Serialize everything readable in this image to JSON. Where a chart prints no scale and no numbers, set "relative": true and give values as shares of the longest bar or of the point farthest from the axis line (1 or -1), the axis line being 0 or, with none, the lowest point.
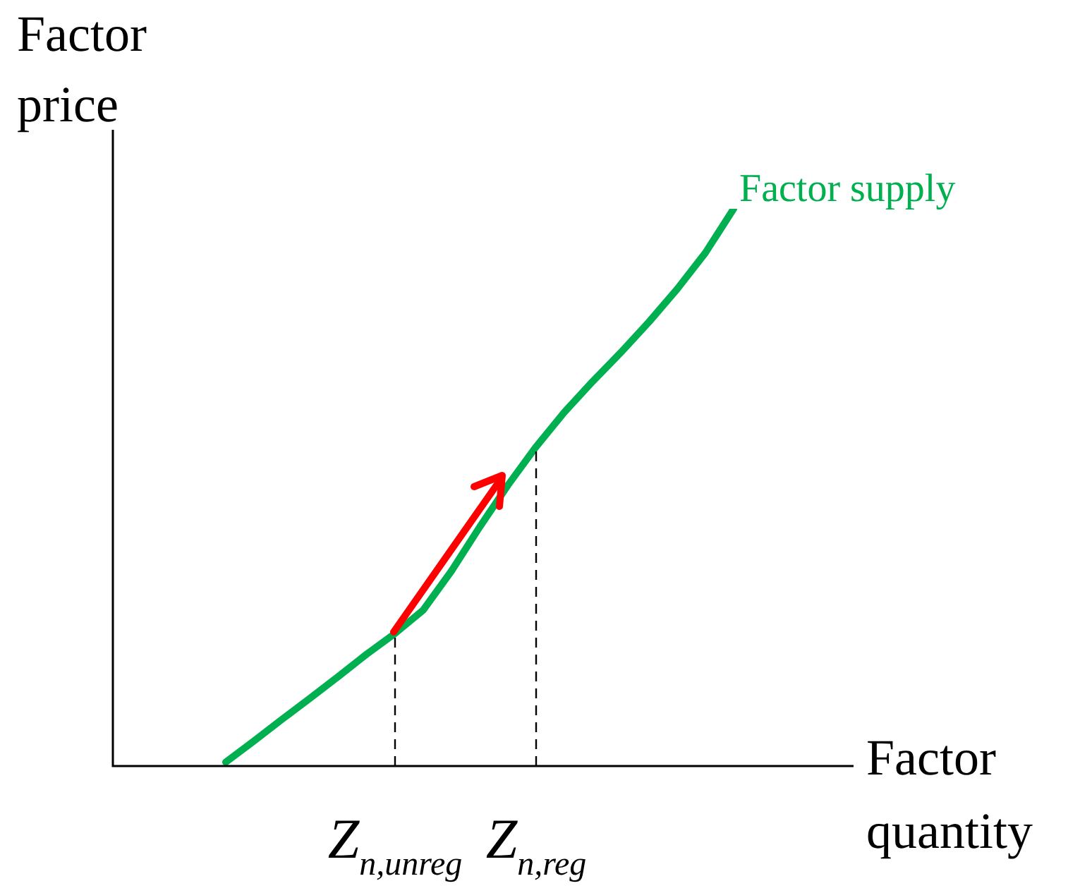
{
  "chart_data": {
    "type": "line",
    "relative": true,
    "xlabel": "Factor quantity",
    "ylabel": "Factor price",
    "categories": [
      null,
      null,
      null,
      null,
      null,
      null,
      "Z$_{n,unreg}$",
      null,
      null,
      null,
      null,
      "Z$_{n,reg}$",
      null,
      null,
      null,
      null,
      null,
      null,
      null
    ],
    "series": [
      {
        "name": "Factor supply",
        "color": "#00b050",
        "values": [
          0.007,
          0.045,
          0.084,
          0.122,
          0.161,
          0.201,
          0.238,
          0.28,
          0.35,
          0.429,
          0.504,
          0.573,
          0.635,
          0.69,
          0.742,
          0.797,
          0.856,
          0.921,
          1
        ]
      }
    ],
    "ref_lines": [
      {
        "axis": "x",
        "value": "Z$_{n,unreg}$",
        "color": "#000000",
        "line_style": "dashed"
      },
      {
        "axis": "x",
        "value": "Z$_{n,reg}$",
        "color": "#000000",
        "line_style": "dashed"
      }
    ],
    "tick_labels": "x",
    "grid": false,
    "legend": false,
    "marker": "none",
    "line_style": "solid"
  }
}
